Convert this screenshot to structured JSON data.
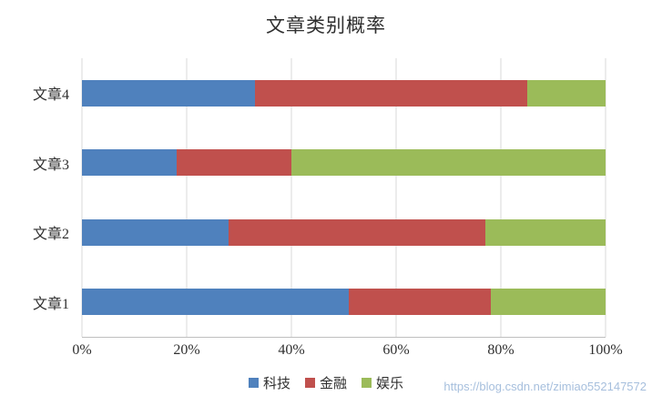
{
  "watermark": "https://blog.csdn.net/zimiao552147572",
  "chart_data": {
    "type": "bar",
    "stacked": true,
    "orientation": "horizontal",
    "title": "文章类别概率",
    "categories": [
      "文章4",
      "文章3",
      "文章2",
      "文章1"
    ],
    "series": [
      {
        "name": "科技",
        "color": "#4F81BD",
        "values": [
          33,
          18,
          28,
          51
        ]
      },
      {
        "name": "金融",
        "color": "#C0504D",
        "values": [
          52,
          22,
          49,
          27
        ]
      },
      {
        "name": "娱乐",
        "color": "#9BBB59",
        "values": [
          15,
          60,
          23,
          22
        ]
      }
    ],
    "x_ticks": [
      "0%",
      "20%",
      "40%",
      "60%",
      "80%",
      "100%"
    ],
    "xlim": [
      0,
      100
    ],
    "grid": "vertical",
    "legend_position": "bottom"
  }
}
